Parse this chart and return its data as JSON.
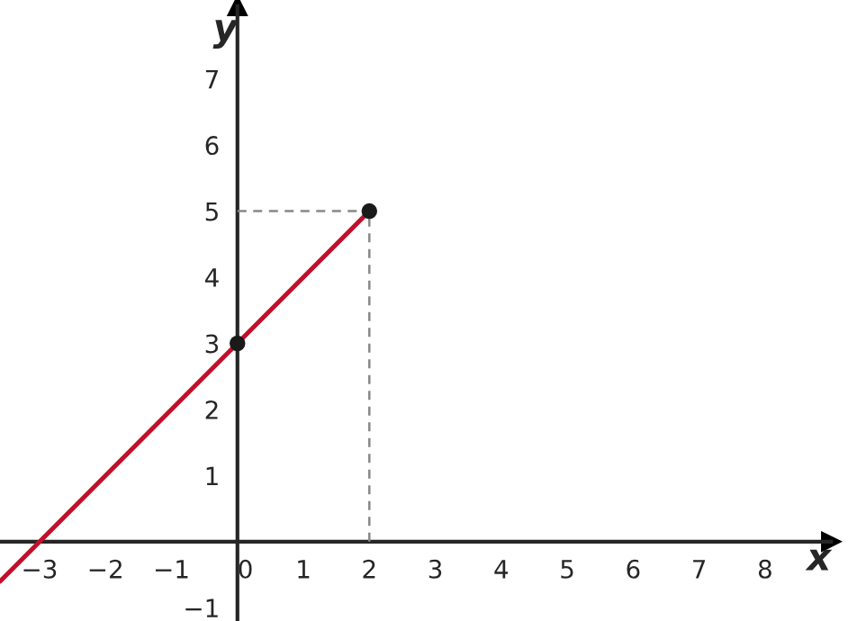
{
  "chart_data": {
    "type": "line",
    "xlabel": "x",
    "ylabel": "y",
    "series": [
      {
        "color": "#888888",
        "line_style": "dashed",
        "x": [
          2,
          2
        ],
        "values": [
          0,
          5
        ]
      },
      {
        "color": "#888888",
        "line_style": "dashed",
        "x": [
          0,
          2
        ],
        "values": [
          5,
          5
        ]
      },
      {
        "color": "#c0102a",
        "line_style": "solid",
        "x": [
          -3.6,
          2
        ],
        "values": [
          -0.6,
          5
        ]
      },
      {
        "type": "scatter",
        "color": "#1a1a1a",
        "marker": "circle",
        "x": [
          0,
          2
        ],
        "values": [
          3,
          5
        ]
      }
    ],
    "xlim": [
      -3.6,
      9
    ],
    "ylim": [
      -1.2,
      8.1
    ],
    "xticks": [
      {
        "value": -3,
        "label": "−3"
      },
      {
        "value": -2,
        "label": "−2"
      },
      {
        "value": -1,
        "label": "−1"
      },
      0,
      1,
      2,
      3,
      4,
      5,
      6,
      7,
      8
    ],
    "yticks": [
      {
        "value": -1,
        "label": "−1"
      },
      1,
      2,
      3,
      4,
      5,
      6,
      7
    ],
    "grid": false,
    "legend": false
  }
}
